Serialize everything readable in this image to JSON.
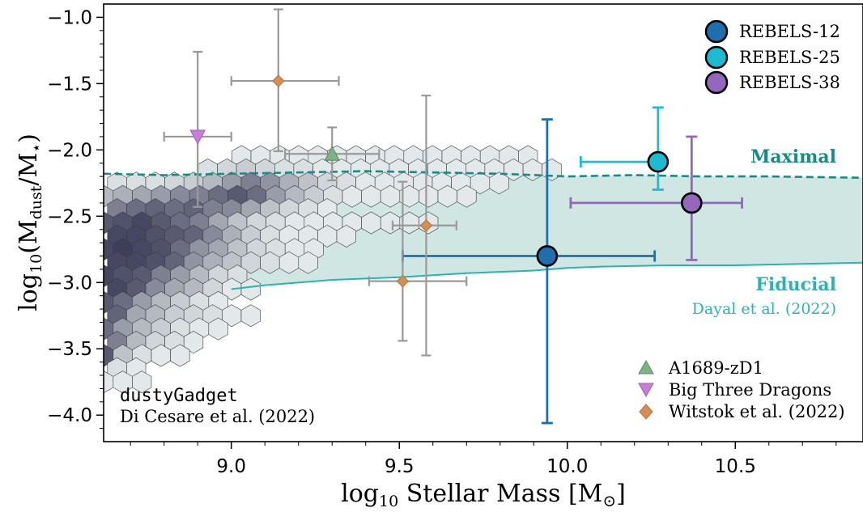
{
  "chart_data": {
    "type": "scatter",
    "xlabel": "log10 Stellar Mass [M⊙]",
    "ylabel": "log10(Mdust/M⋆)",
    "xlim": [
      8.62,
      10.88
    ],
    "ylim": [
      -4.2,
      -0.9
    ],
    "xticks": [
      9.0,
      9.5,
      10.0,
      10.5
    ],
    "xtick_labels": [
      "9.0",
      "9.5",
      "10.0",
      "10.5"
    ],
    "yticks": [
      -1.0,
      -1.5,
      -2.0,
      -2.5,
      -3.0,
      -3.5,
      -4.0
    ],
    "ytick_labels": [
      "−1.0",
      "−1.5",
      "−2.0",
      "−2.5",
      "−3.0",
      "−3.5",
      "−4.0"
    ],
    "grid": false,
    "model_curves": {
      "maximal": {
        "label": "Maximal",
        "color": "#1a8a84",
        "x": [
          8.62,
          8.8,
          9.0,
          9.2,
          9.4,
          9.6,
          9.8,
          10.0,
          10.2,
          10.4,
          10.6,
          10.88
        ],
        "y": [
          -2.18,
          -2.19,
          -2.18,
          -2.17,
          -2.16,
          -2.17,
          -2.18,
          -2.2,
          -2.19,
          -2.2,
          -2.2,
          -2.21
        ]
      },
      "fiducial": {
        "label": "Fiducial",
        "color": "#2ab3b1",
        "x": [
          8.62,
          9.0,
          9.1,
          9.3,
          9.5,
          9.7,
          9.9,
          10.0,
          10.1,
          10.3,
          10.5,
          10.7,
          10.88
        ],
        "y": [
          -3.11,
          -3.05,
          -3.02,
          -2.98,
          -2.96,
          -2.93,
          -2.91,
          -2.89,
          -2.88,
          -2.87,
          -2.87,
          -2.86,
          -2.85
        ]
      },
      "citation": "Dayal et al. (2022)"
    },
    "series": [
      {
        "name": "REBELS-12",
        "color": "#1f6fae",
        "marker": "circle",
        "points": [
          {
            "x": 9.94,
            "y": -2.8,
            "xerr": [
              0.43,
              0.32
            ],
            "yerr": [
              1.26,
              1.03
            ]
          }
        ]
      },
      {
        "name": "REBELS-25",
        "color": "#1bbcd1",
        "marker": "circle",
        "points": [
          {
            "x": 10.27,
            "y": -2.09,
            "xerr": [
              0.23,
              0.0
            ],
            "yerr": [
              0.21,
              0.41
            ]
          }
        ]
      },
      {
        "name": "REBELS-38",
        "color": "#9467bd",
        "marker": "circle",
        "points": [
          {
            "x": 10.37,
            "y": -2.4,
            "xerr": [
              0.36,
              0.15
            ],
            "yerr": [
              0.43,
              0.5
            ]
          }
        ]
      },
      {
        "name": "A1689-zD1",
        "color": "#7fb386",
        "marker": "triangle-up",
        "points": [
          {
            "x": 9.3,
            "y": -2.03,
            "xerr": [
              0.14,
              0.14
            ],
            "yerr": [
              0.2,
              0.2
            ]
          }
        ]
      },
      {
        "name": "Big Three Dragons",
        "color": "#c77ed6",
        "marker": "triangle-down",
        "points": [
          {
            "x": 8.9,
            "y": -1.9,
            "xerr": [
              0.1,
              0.1
            ],
            "yerr": [
              0.53,
              0.64
            ]
          }
        ]
      },
      {
        "name": "Witstok et al. (2022)",
        "color": "#d68f52",
        "marker": "diamond",
        "points": [
          {
            "x": 9.14,
            "y": -1.48,
            "xerr": [
              0.14,
              0.18
            ],
            "yerr": [
              0.53,
              0.54
            ]
          },
          {
            "x": 9.58,
            "y": -2.57,
            "xerr": [
              0.1,
              0.09
            ],
            "yerr": [
              0.98,
              0.98
            ]
          },
          {
            "x": 9.51,
            "y": -2.99,
            "xerr": [
              0.1,
              0.19
            ],
            "yerr": [
              0.45,
              0.75
            ]
          }
        ]
      }
    ],
    "hexbin": {
      "label": "dustyGadget",
      "citation": "Di Cesare et al. (2022)",
      "rows": [
        {
          "y": -2.05,
          "x0": 9.03,
          "x1": 10.28,
          "density": [
            0.05,
            0.05,
            0.05,
            0.05,
            0.05,
            0.05,
            0.05,
            0.05,
            0.05,
            0.05,
            0.05,
            0.05,
            0.05,
            0.05,
            0.05,
            0.05
          ]
        },
        {
          "y": -2.15,
          "x0": 8.93,
          "x1": 10.39,
          "density": [
            0.1,
            0.15,
            0.2,
            0.15,
            0.1,
            0.1,
            0.05,
            0.05,
            0.05,
            0.05,
            0.05,
            0.05,
            0.05,
            0.05,
            0.05,
            0.05,
            0.05,
            0.05,
            0.05
          ]
        },
        {
          "y": -2.25,
          "x0": 8.66,
          "x1": 10.24,
          "density": [
            0.1,
            0.1,
            0.1,
            0.15,
            0.2,
            0.3,
            0.45,
            0.6,
            0.5,
            0.35,
            0.25,
            0.15,
            0.1,
            0.05,
            0.05,
            0.05,
            0.05,
            0.05,
            0.05,
            0.05,
            0.05
          ]
        },
        {
          "y": -2.35,
          "x0": 8.62,
          "x1": 10.11,
          "density": [
            0.3,
            0.35,
            0.4,
            0.45,
            0.55,
            0.6,
            0.7,
            0.8,
            0.7,
            0.45,
            0.3,
            0.2,
            0.1,
            0.05,
            0.05,
            0.05,
            0.05,
            0.05,
            0.05,
            0.05
          ]
        },
        {
          "y": -2.45,
          "x0": 8.66,
          "x1": 9.57,
          "density": [
            0.6,
            0.7,
            0.75,
            0.7,
            0.75,
            0.6,
            0.55,
            0.4,
            0.25,
            0.15,
            0.1,
            0.05
          ]
        },
        {
          "y": -2.55,
          "x0": 8.62,
          "x1": 9.99,
          "density": [
            0.8,
            0.85,
            0.9,
            0.8,
            0.7,
            0.6,
            0.4,
            0.25,
            0.15,
            0.1,
            0.05,
            0.05,
            0.05,
            0.05,
            0.05,
            0.05,
            0.05,
            0.05
          ]
        },
        {
          "y": -2.65,
          "x0": 8.66,
          "x1": 9.62,
          "density": [
            0.9,
            0.9,
            0.85,
            0.8,
            0.75,
            0.55,
            0.35,
            0.2,
            0.1,
            0.05,
            0.05,
            0.05,
            0.05
          ]
        },
        {
          "y": -2.75,
          "x0": 8.62,
          "x1": 9.52,
          "density": [
            0.9,
            0.95,
            0.9,
            0.85,
            0.7,
            0.5,
            0.4,
            0.25,
            0.15,
            0.1,
            0.05,
            0.05
          ]
        },
        {
          "y": -2.85,
          "x0": 8.66,
          "x1": 9.46,
          "density": [
            0.9,
            0.9,
            0.85,
            0.75,
            0.5,
            0.35,
            0.25,
            0.15,
            0.1,
            0.05,
            0.05
          ]
        },
        {
          "y": -2.95,
          "x0": 8.62,
          "x1": 9.16,
          "density": [
            0.9,
            0.85,
            0.8,
            0.6,
            0.45,
            0.3,
            0.15,
            0.1
          ]
        },
        {
          "y": -3.05,
          "x0": 8.66,
          "x1": 9.21,
          "density": [
            0.9,
            0.8,
            0.55,
            0.4,
            0.3,
            0.15,
            0.05,
            0.05
          ]
        },
        {
          "y": -3.15,
          "x0": 8.62,
          "x1": 9.11,
          "density": [
            0.8,
            0.7,
            0.45,
            0.3,
            0.2,
            0.1,
            0.05
          ]
        },
        {
          "y": -3.25,
          "x0": 8.66,
          "x1": 9.21,
          "density": [
            0.75,
            0.4,
            0.3,
            0.2,
            0.15,
            0.1,
            0.05,
            0.05
          ]
        },
        {
          "y": -3.35,
          "x0": 8.62,
          "x1": 9.11,
          "density": [
            0.7,
            0.45,
            0.3,
            0.2,
            0.1,
            0.05,
            0.05
          ]
        },
        {
          "y": -3.45,
          "x0": 8.66,
          "x1": 8.97,
          "density": [
            0.6,
            0.3,
            0.15,
            0.1,
            0.05
          ]
        },
        {
          "y": -3.55,
          "x0": 8.62,
          "x1": 8.92,
          "density": [
            0.8,
            0.25,
            0.1,
            0.05,
            0.05
          ]
        },
        {
          "y": -3.65,
          "x0": 8.66,
          "x1": 8.76,
          "density": [
            0.1,
            0.05
          ]
        },
        {
          "y": -3.75,
          "x0": 8.62,
          "x1": 8.76,
          "density": [
            0.05,
            0.05,
            0.05
          ]
        }
      ]
    },
    "legend_upper": {
      "placement": "top-right",
      "entries": [
        "REBELS-12",
        "REBELS-25",
        "REBELS-38"
      ]
    },
    "legend_lower": {
      "placement": "bottom-right",
      "entries": [
        "A1689-zD1",
        "Big Three Dragons",
        "Witstok et al. (2022)"
      ]
    }
  }
}
